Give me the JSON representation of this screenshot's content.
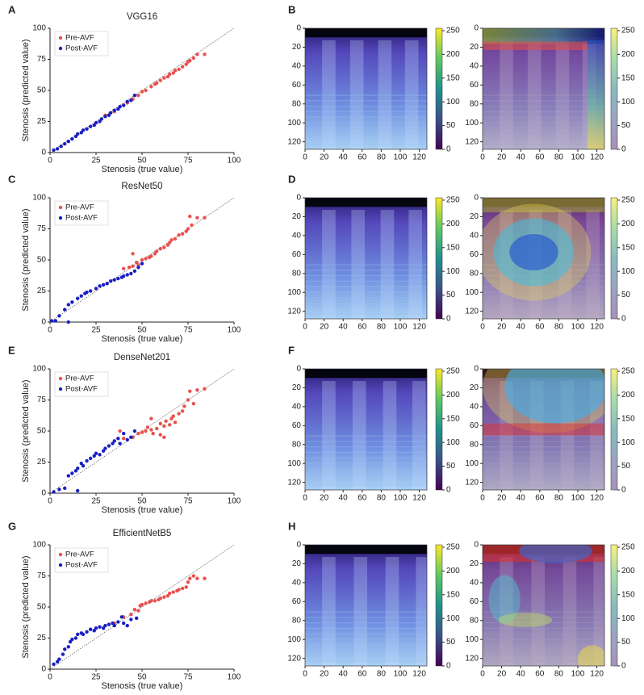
{
  "chart_data": [
    {
      "type": "scatter",
      "panel": "A",
      "title": "VGG16",
      "x_label": "Stenosis (true value)",
      "y_label": "Stenosis (predicted value)",
      "xlim": [
        0,
        100
      ],
      "ylim": [
        0,
        100
      ],
      "xticks": [
        0,
        25,
        50,
        75,
        100
      ],
      "yticks": [
        0,
        25,
        50,
        75,
        100
      ],
      "series": [
        {
          "name": "Pre-AVF",
          "color": "#e8514f",
          "x": [
            30,
            35,
            38,
            40,
            42,
            45,
            48,
            50,
            52,
            55,
            57,
            58,
            60,
            62,
            64,
            65,
            67,
            68,
            70,
            72,
            74,
            75,
            76,
            78,
            80,
            84
          ],
          "values": [
            30,
            33,
            37,
            38,
            40,
            43,
            46,
            49,
            50,
            53,
            55,
            56,
            58,
            60,
            61,
            63,
            64,
            66,
            67,
            69,
            71,
            73,
            74,
            76,
            79,
            79
          ]
        },
        {
          "name": "Post-AVF",
          "color": "#1a1fc4",
          "x": [
            2,
            4,
            6,
            8,
            10,
            12,
            14,
            15,
            17,
            18,
            20,
            22,
            24,
            25,
            27,
            28,
            30,
            32,
            33,
            35,
            37,
            38,
            40,
            42,
            44,
            46
          ],
          "values": [
            2,
            3,
            5,
            7,
            9,
            11,
            13,
            15,
            16,
            18,
            19,
            21,
            22,
            24,
            25,
            27,
            29,
            30,
            32,
            34,
            35,
            37,
            38,
            41,
            42,
            46
          ]
        }
      ]
    },
    {
      "type": "heatmap",
      "panel": "B",
      "xlim": [
        0,
        128
      ],
      "ylim": [
        128,
        0
      ],
      "xticks": [
        0,
        20,
        40,
        60,
        80,
        100,
        120
      ],
      "yticks": [
        0,
        20,
        40,
        60,
        80,
        100,
        120
      ],
      "clim": [
        0,
        255
      ],
      "cticks": [
        0,
        50,
        100,
        150,
        200,
        250
      ]
    },
    {
      "type": "heatmap",
      "xlim": [
        0,
        128
      ],
      "ylim": [
        128,
        0
      ],
      "xticks": [
        0,
        20,
        40,
        60,
        80,
        100,
        120
      ],
      "yticks": [
        0,
        20,
        40,
        60,
        80,
        100,
        120
      ],
      "clim": [
        0,
        255
      ],
      "cticks": [
        0,
        50,
        100,
        150,
        200,
        250
      ]
    },
    {
      "type": "scatter",
      "panel": "C",
      "title": "ResNet50",
      "x_label": "Stenosis (true value)",
      "y_label": "Stenosis (predicted value)",
      "xlim": [
        0,
        100
      ],
      "ylim": [
        0,
        100
      ],
      "xticks": [
        0,
        25,
        50,
        75,
        100
      ],
      "yticks": [
        0,
        25,
        50,
        75,
        100
      ],
      "series": [
        {
          "name": "Pre-AVF",
          "color": "#e8514f",
          "x": [
            40,
            43,
            45,
            47,
            48,
            50,
            52,
            54,
            55,
            57,
            58,
            60,
            62,
            64,
            65,
            66,
            68,
            70,
            72,
            74,
            75,
            76,
            77,
            80,
            84,
            45
          ],
          "values": [
            43,
            44,
            45,
            48,
            46,
            50,
            51,
            52,
            53,
            55,
            57,
            59,
            60,
            62,
            64,
            66,
            67,
            70,
            71,
            73,
            75,
            85,
            78,
            84,
            84,
            55
          ]
        },
        {
          "name": "Post-AVF",
          "color": "#1a1fc4",
          "x": [
            1,
            3,
            5,
            8,
            10,
            10,
            12,
            15,
            17,
            19,
            20,
            22,
            25,
            27,
            29,
            31,
            33,
            35,
            37,
            39,
            40,
            42,
            44,
            46,
            48,
            50
          ],
          "values": [
            1,
            1,
            5,
            10,
            0,
            14,
            16,
            19,
            21,
            23,
            24,
            25,
            27,
            29,
            30,
            31,
            33,
            34,
            35,
            36,
            37,
            38,
            39,
            41,
            44,
            47
          ]
        }
      ]
    },
    {
      "type": "heatmap",
      "panel": "D",
      "xlim": [
        0,
        128
      ],
      "ylim": [
        128,
        0
      ],
      "xticks": [
        0,
        20,
        40,
        60,
        80,
        100,
        120
      ],
      "yticks": [
        0,
        20,
        40,
        60,
        80,
        100,
        120
      ],
      "clim": [
        0,
        255
      ],
      "cticks": [
        0,
        50,
        100,
        150,
        200,
        250
      ]
    },
    {
      "type": "heatmap",
      "xlim": [
        0,
        128
      ],
      "ylim": [
        128,
        0
      ],
      "xticks": [
        0,
        20,
        40,
        60,
        80,
        100,
        120
      ],
      "yticks": [
        0,
        20,
        40,
        60,
        80,
        100,
        120
      ],
      "clim": [
        0,
        255
      ],
      "cticks": [
        0,
        50,
        100,
        150,
        200,
        250
      ]
    },
    {
      "type": "scatter",
      "panel": "E",
      "title": "DenseNet201",
      "x_label": "Stenosis (true value)",
      "y_label": "Stenosis (predicted value)",
      "xlim": [
        0,
        100
      ],
      "ylim": [
        0,
        100
      ],
      "xticks": [
        0,
        25,
        50,
        75,
        100
      ],
      "yticks": [
        0,
        25,
        50,
        75,
        100
      ],
      "series": [
        {
          "name": "Pre-AVF",
          "color": "#e8514f",
          "x": [
            38,
            40,
            45,
            48,
            50,
            52,
            53,
            55,
            56,
            58,
            60,
            60,
            62,
            63,
            65,
            66,
            67,
            68,
            70,
            72,
            73,
            75,
            76,
            78,
            80,
            84,
            55,
            62
          ],
          "values": [
            50,
            44,
            45,
            48,
            49,
            50,
            53,
            51,
            48,
            52,
            56,
            47,
            54,
            58,
            55,
            60,
            62,
            57,
            64,
            66,
            70,
            75,
            82,
            72,
            83,
            84,
            60,
            45
          ]
        },
        {
          "name": "Post-AVF",
          "color": "#1a1fc4",
          "x": [
            2,
            5,
            8,
            10,
            12,
            14,
            15,
            15,
            17,
            18,
            20,
            22,
            24,
            25,
            27,
            29,
            30,
            32,
            34,
            35,
            37,
            38,
            40,
            42,
            44,
            46
          ],
          "values": [
            1,
            3,
            4,
            14,
            16,
            18,
            2,
            20,
            24,
            22,
            26,
            28,
            30,
            32,
            31,
            34,
            36,
            38,
            40,
            42,
            44,
            40,
            48,
            43,
            45,
            50
          ]
        }
      ]
    },
    {
      "type": "heatmap",
      "panel": "F",
      "xlim": [
        0,
        128
      ],
      "ylim": [
        128,
        0
      ],
      "xticks": [
        0,
        20,
        40,
        60,
        80,
        100,
        120
      ],
      "yticks": [
        0,
        20,
        40,
        60,
        80,
        100,
        120
      ],
      "clim": [
        0,
        255
      ],
      "cticks": [
        0,
        50,
        100,
        150,
        200,
        250
      ]
    },
    {
      "type": "heatmap",
      "xlim": [
        0,
        128
      ],
      "ylim": [
        128,
        0
      ],
      "xticks": [
        0,
        20,
        40,
        60,
        80,
        100,
        120
      ],
      "yticks": [
        0,
        20,
        40,
        60,
        80,
        100,
        120
      ],
      "clim": [
        0,
        255
      ],
      "cticks": [
        0,
        50,
        100,
        150,
        200,
        250
      ]
    },
    {
      "type": "scatter",
      "panel": "G",
      "title": "EfficientNetB5",
      "x_label": "Stenosis (true value)",
      "y_label": "Stenosis (predicted value)",
      "xlim": [
        0,
        100
      ],
      "ylim": [
        0,
        100
      ],
      "xticks": [
        0,
        25,
        50,
        75,
        100
      ],
      "yticks": [
        0,
        25,
        50,
        75,
        100
      ],
      "series": [
        {
          "name": "Pre-AVF",
          "color": "#e8514f",
          "x": [
            35,
            40,
            44,
            46,
            48,
            49,
            50,
            52,
            54,
            55,
            57,
            59,
            60,
            62,
            64,
            65,
            67,
            69,
            70,
            72,
            74,
            75,
            76,
            78,
            80,
            84
          ],
          "values": [
            37,
            42,
            44,
            48,
            47,
            51,
            52,
            53,
            54,
            55,
            55,
            56,
            57,
            58,
            59,
            61,
            62,
            63,
            64,
            65,
            66,
            70,
            73,
            75,
            73,
            73
          ]
        },
        {
          "name": "Post-AVF",
          "color": "#1a1fc4",
          "x": [
            2,
            4,
            5,
            7,
            8,
            10,
            11,
            12,
            14,
            15,
            17,
            18,
            20,
            22,
            24,
            25,
            27,
            29,
            30,
            32,
            34,
            35,
            37,
            39,
            40,
            42,
            44,
            47
          ],
          "values": [
            4,
            6,
            8,
            12,
            16,
            18,
            22,
            24,
            25,
            28,
            29,
            28,
            30,
            32,
            31,
            33,
            34,
            33,
            35,
            36,
            37,
            35,
            38,
            42,
            37,
            35,
            40,
            41
          ]
        }
      ]
    },
    {
      "type": "heatmap",
      "panel": "H",
      "xlim": [
        0,
        128
      ],
      "ylim": [
        128,
        0
      ],
      "xticks": [
        0,
        20,
        40,
        60,
        80,
        100,
        120
      ],
      "yticks": [
        0,
        20,
        40,
        60,
        80,
        100,
        120
      ],
      "clim": [
        0,
        255
      ],
      "cticks": [
        0,
        50,
        100,
        150,
        200,
        250
      ]
    },
    {
      "type": "heatmap",
      "xlim": [
        0,
        128
      ],
      "ylim": [
        128,
        0
      ],
      "xticks": [
        0,
        20,
        40,
        60,
        80,
        100,
        120
      ],
      "yticks": [
        0,
        20,
        40,
        60,
        80,
        100,
        120
      ],
      "clim": [
        0,
        255
      ],
      "cticks": [
        0,
        50,
        100,
        150,
        200,
        250
      ]
    }
  ]
}
